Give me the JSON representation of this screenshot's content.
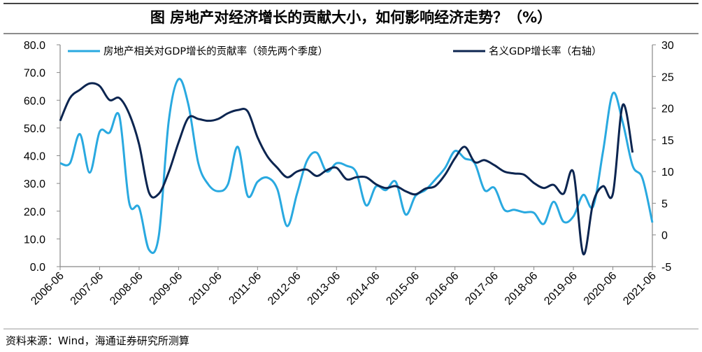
{
  "title": "图  房地产对经济增长的贡献大小，如何影响经济走势？（%）",
  "footer": "资料来源：Wind，海通证券研究所测算",
  "colors": {
    "light": "#29a9e0",
    "dark": "#0c2550"
  },
  "chart_data": {
    "type": "line",
    "title": "图  房地产对经济增长的贡献大小，如何影响经济走势？（%）",
    "x_tick_labels": [
      "2006-06",
      "2007-06",
      "2008-06",
      "2009-06",
      "2010-06",
      "2011-06",
      "2012-06",
      "2013-06",
      "2014-06",
      "2015-06",
      "2016-06",
      "2017-06",
      "2018-06",
      "2019-06",
      "2020-06",
      "2021-06"
    ],
    "x_frequency": "quarterly",
    "x_start": "2006-06",
    "y_left": {
      "ylim": [
        0,
        80
      ],
      "ticks": [
        "0.0",
        "10.0",
        "20.0",
        "30.0",
        "40.0",
        "50.0",
        "60.0",
        "70.0",
        "80.0"
      ]
    },
    "y_right": {
      "ylim": [
        -5,
        30
      ],
      "ticks": [
        "-5",
        "0",
        "5",
        "10",
        "15",
        "20",
        "25",
        "30"
      ]
    },
    "grid": false,
    "legend_placement": "top",
    "series": [
      {
        "name": "房地产相关对GDP增长的贡献率（领先两个季度）",
        "axis": "left",
        "values": [
          37.3,
          37.3,
          47.8,
          33.9,
          48.6,
          48.3,
          54.3,
          23.0,
          21.3,
          6.1,
          11.2,
          52.4,
          67.6,
          58.3,
          37.3,
          29.7,
          27.2,
          29.7,
          43.2,
          25.5,
          30.6,
          32.1,
          28.0,
          14.6,
          26.3,
          38.1,
          41.1,
          34.3,
          37.3,
          36.4,
          34.0,
          22.1,
          28.9,
          27.6,
          30.6,
          18.8,
          25.5,
          27.6,
          31.4,
          35.6,
          41.7,
          39.0,
          37.3,
          27.6,
          28.4,
          20.5,
          20.5,
          19.6,
          19.4,
          15.4,
          23.4,
          16.2,
          18.1,
          25.9,
          21.7,
          41.5,
          62.5,
          52.0,
          36.4,
          31.8,
          15.9
        ]
      },
      {
        "name": "名义GDP增长率（右轴）",
        "axis": "right",
        "values": [
          18.0,
          21.6,
          22.9,
          23.9,
          23.5,
          21.3,
          21.6,
          19.1,
          14.3,
          6.7,
          6.5,
          9.9,
          14.6,
          18.5,
          18.3,
          18.0,
          18.3,
          19.2,
          19.7,
          19.5,
          15.4,
          12.4,
          10.6,
          9.1,
          10.0,
          10.3,
          9.3,
          10.2,
          10.6,
          8.8,
          9.1,
          9.1,
          8.0,
          7.4,
          7.7,
          6.9,
          6.4,
          7.3,
          7.7,
          9.5,
          12.1,
          13.9,
          11.5,
          11.8,
          11.0,
          10.0,
          9.7,
          9.5,
          8.2,
          7.4,
          7.9,
          6.5,
          9.9,
          -3.0,
          5.1,
          7.7,
          6.5,
          20.5,
          13.0
        ]
      }
    ]
  }
}
